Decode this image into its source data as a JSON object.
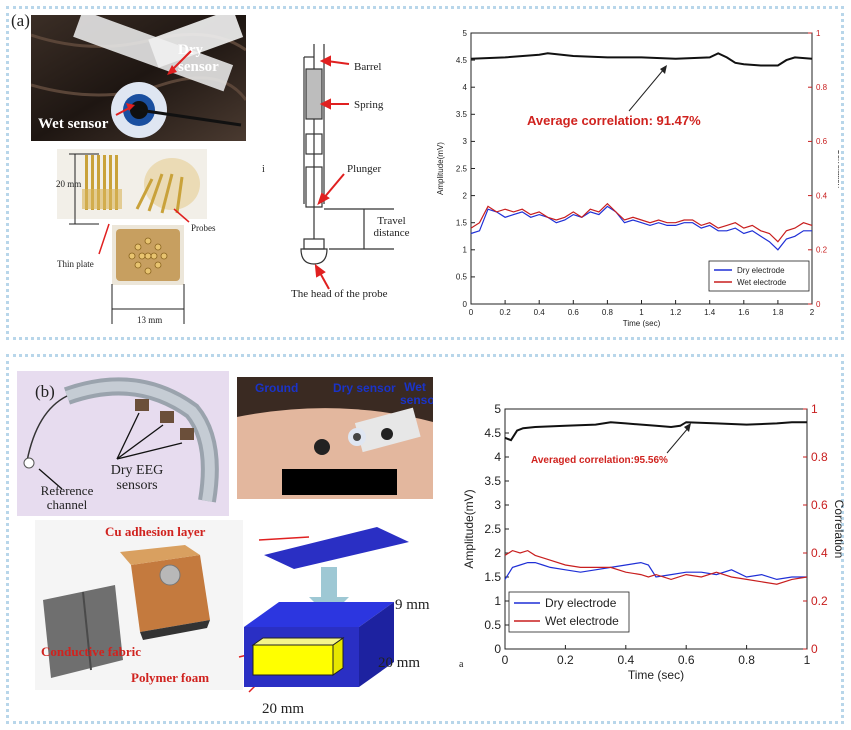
{
  "panel_a": {
    "label": "(a)",
    "photo_labels": {
      "dry": "Dry sensor",
      "wet": "Wet sensor"
    },
    "probe_labels": {
      "height": "20 mm",
      "plate": "Thin plate",
      "probes": "Probes",
      "width": "13 mm"
    },
    "diagram_labels": {
      "barrel": "Barrel",
      "spring": "Spring",
      "plunger": "Plunger",
      "travel": "Travel distance",
      "head": "The head of the probe"
    },
    "diagram_mark": "i"
  },
  "panel_b": {
    "label": "(b)",
    "headset_labels": {
      "dry_eeg": "Dry EEG sensors",
      "reference": "Reference channel"
    },
    "face_labels": {
      "ground": "Ground",
      "dry": "Dry sensor",
      "wet": "Wet sensor"
    },
    "sensor_labels": {
      "cu": "Cu adhesion layer",
      "fabric": "Conductive fabric",
      "foam": "Polymer foam"
    },
    "dims": {
      "h": "9 mm",
      "w": "20 mm",
      "d": "20 mm"
    },
    "chart_mark": "a"
  },
  "chart_data": [
    {
      "type": "line",
      "xlabel": "Time (sec)",
      "ylabel": "Amplitude(mV)",
      "y2label": "Correlation",
      "xlim": [
        0,
        2
      ],
      "ylim": [
        0,
        5
      ],
      "y2lim": [
        0,
        1
      ],
      "xticks": [
        "0",
        "0.2",
        "0.4",
        "0.6",
        "0.8",
        "1",
        "1.2",
        "1.4",
        "1.6",
        "1.8",
        "2"
      ],
      "yticks": [
        "0",
        "0.5",
        "1",
        "1.5",
        "2",
        "2.5",
        "3",
        "3.5",
        "4",
        "4.5",
        "5"
      ],
      "y2ticks": [
        "0",
        "0.2",
        "0.4",
        "0.6",
        "0.8",
        "1"
      ],
      "annotation": "Average correlation: 91.47%",
      "legend": [
        "Dry electrode",
        "Wet electrode"
      ],
      "legend_position": "bottom-right",
      "series": [
        {
          "name": "Dry electrode",
          "color": "#1f2fd6",
          "x": [
            0,
            0.05,
            0.1,
            0.15,
            0.2,
            0.25,
            0.3,
            0.35,
            0.4,
            0.45,
            0.5,
            0.55,
            0.6,
            0.65,
            0.7,
            0.75,
            0.8,
            0.85,
            0.9,
            0.95,
            1.0,
            1.05,
            1.1,
            1.15,
            1.2,
            1.25,
            1.3,
            1.35,
            1.4,
            1.45,
            1.5,
            1.55,
            1.6,
            1.65,
            1.7,
            1.75,
            1.8,
            1.85,
            1.9,
            1.95,
            2.0
          ],
          "y": [
            1.3,
            1.35,
            1.75,
            1.7,
            1.6,
            1.65,
            1.7,
            1.6,
            1.65,
            1.6,
            1.5,
            1.55,
            1.65,
            1.6,
            1.7,
            1.65,
            1.8,
            1.7,
            1.5,
            1.55,
            1.5,
            1.45,
            1.5,
            1.45,
            1.45,
            1.5,
            1.5,
            1.4,
            1.45,
            1.35,
            1.35,
            1.4,
            1.3,
            1.35,
            1.25,
            1.15,
            1.0,
            1.2,
            1.25,
            1.35,
            1.35
          ]
        },
        {
          "name": "Wet electrode",
          "color": "#c81e1e",
          "x": [
            0,
            0.05,
            0.1,
            0.15,
            0.2,
            0.25,
            0.3,
            0.35,
            0.4,
            0.45,
            0.5,
            0.55,
            0.6,
            0.65,
            0.7,
            0.75,
            0.8,
            0.85,
            0.9,
            0.95,
            1.0,
            1.05,
            1.1,
            1.15,
            1.2,
            1.25,
            1.3,
            1.35,
            1.4,
            1.45,
            1.5,
            1.55,
            1.6,
            1.65,
            1.7,
            1.75,
            1.8,
            1.85,
            1.9,
            1.95,
            2.0
          ],
          "y": [
            1.4,
            1.5,
            1.8,
            1.7,
            1.75,
            1.7,
            1.75,
            1.65,
            1.7,
            1.6,
            1.55,
            1.6,
            1.7,
            1.6,
            1.75,
            1.7,
            1.85,
            1.7,
            1.55,
            1.6,
            1.55,
            1.5,
            1.55,
            1.5,
            1.5,
            1.55,
            1.55,
            1.45,
            1.5,
            1.4,
            1.45,
            1.5,
            1.4,
            1.45,
            1.35,
            1.3,
            1.15,
            1.35,
            1.4,
            1.5,
            1.45
          ]
        },
        {
          "name": "",
          "color": "#111111",
          "axis": "right",
          "x": [
            0,
            0.2,
            0.4,
            0.45,
            0.6,
            0.8,
            1.0,
            1.2,
            1.4,
            1.45,
            1.5,
            1.55,
            1.6,
            1.7,
            1.8,
            1.85,
            1.9,
            2.0
          ],
          "y": [
            0.905,
            0.91,
            0.92,
            0.925,
            0.915,
            0.91,
            0.91,
            0.905,
            0.91,
            0.925,
            0.91,
            0.89,
            0.885,
            0.88,
            0.88,
            0.9,
            0.91,
            0.905
          ]
        }
      ]
    },
    {
      "type": "line",
      "xlabel": "Time (sec)",
      "ylabel": "Amplitude(mV)",
      "y2label": "Correlation",
      "xlim": [
        0,
        1
      ],
      "ylim": [
        0,
        5
      ],
      "y2lim": [
        0,
        1
      ],
      "xticks": [
        "0",
        "0.2",
        "0.4",
        "0.6",
        "0.8",
        "1"
      ],
      "yticks": [
        "0",
        "0.5",
        "1",
        "1.5",
        "2",
        "2.5",
        "3",
        "3.5",
        "4",
        "4.5",
        "5"
      ],
      "y2ticks": [
        "0",
        "0.2",
        "0.4",
        "0.6",
        "0.8",
        "1"
      ],
      "annotation": "Averaged correlation:95.56%",
      "legend": [
        "Dry electrode",
        "Wet electrode"
      ],
      "legend_position": "bottom-left",
      "series": [
        {
          "name": "Dry electrode",
          "color": "#1f2fd6",
          "x": [
            0,
            0.025,
            0.05,
            0.075,
            0.1,
            0.125,
            0.15,
            0.2,
            0.25,
            0.3,
            0.35,
            0.4,
            0.45,
            0.475,
            0.5,
            0.55,
            0.6,
            0.65,
            0.7,
            0.75,
            0.8,
            0.85,
            0.9,
            0.95,
            1.0
          ],
          "y": [
            1.45,
            1.7,
            1.75,
            1.8,
            1.8,
            1.75,
            1.7,
            1.65,
            1.6,
            1.65,
            1.7,
            1.75,
            1.8,
            1.75,
            1.5,
            1.55,
            1.6,
            1.6,
            1.55,
            1.65,
            1.5,
            1.55,
            1.45,
            1.5,
            1.5
          ]
        },
        {
          "name": "Wet electrode",
          "color": "#c81e1e",
          "x": [
            0,
            0.025,
            0.05,
            0.075,
            0.1,
            0.125,
            0.15,
            0.2,
            0.25,
            0.3,
            0.35,
            0.4,
            0.45,
            0.475,
            0.5,
            0.55,
            0.6,
            0.65,
            0.7,
            0.75,
            0.8,
            0.85,
            0.9,
            0.95,
            1.0
          ],
          "y": [
            1.95,
            2.05,
            2.0,
            2.05,
            1.95,
            1.9,
            1.85,
            1.75,
            1.7,
            1.7,
            1.7,
            1.6,
            1.55,
            1.5,
            1.55,
            1.45,
            1.55,
            1.5,
            1.6,
            1.5,
            1.45,
            1.4,
            1.35,
            1.45,
            1.5
          ]
        },
        {
          "name": "",
          "color": "#111111",
          "axis": "right",
          "x": [
            0,
            0.02,
            0.04,
            0.06,
            0.1,
            0.2,
            0.3,
            0.35,
            0.4,
            0.5,
            0.55,
            0.58,
            0.6,
            0.7,
            0.8,
            0.9,
            0.95,
            1.0
          ],
          "y": [
            0.88,
            0.87,
            0.91,
            0.92,
            0.925,
            0.93,
            0.935,
            0.945,
            0.94,
            0.93,
            0.925,
            0.93,
            0.945,
            0.94,
            0.935,
            0.94,
            0.945,
            0.945
          ]
        }
      ]
    }
  ]
}
